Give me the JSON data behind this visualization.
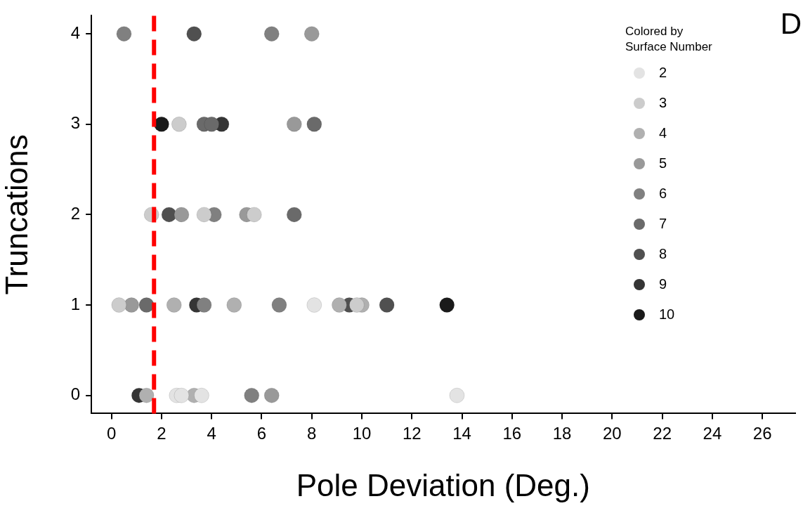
{
  "chart_data": {
    "type": "scatter",
    "xlabel": "Pole Deviation (Deg.)",
    "ylabel": "Truncations",
    "legend_title": "Colored by Surface Number",
    "legend": "top right",
    "grid": false,
    "marker": "circle",
    "xlim": [
      -0.8,
      27.3
    ],
    "xticks": [
      0,
      2,
      4,
      6,
      8,
      10,
      12,
      14,
      16,
      18,
      20,
      22,
      24,
      26
    ],
    "ylim": [
      -0.2,
      4.2
    ],
    "yticks": [
      0,
      1,
      2,
      3,
      4
    ],
    "annotations": [
      "D"
    ],
    "ref_lines": [
      {
        "axis": "x",
        "value": 1.7,
        "color": "#ff0000",
        "line_style": "dashed"
      }
    ],
    "series": [
      {
        "name": "2",
        "color": "#e3e3e3",
        "x": [
          8.1,
          2.6,
          2.8,
          3.6,
          13.8
        ],
        "values": [
          1,
          0,
          0,
          0,
          0
        ]
      },
      {
        "name": "3",
        "color": "#cccccc",
        "x": [
          2.7,
          1.6,
          3.7,
          5.7,
          0.3,
          9.8
        ],
        "values": [
          3,
          2,
          2,
          2,
          1,
          1
        ]
      },
      {
        "name": "4",
        "color": "#b0b0b0",
        "x": [
          2.5,
          4.9,
          9.1,
          10.0,
          1.4,
          3.3
        ],
        "values": [
          1,
          1,
          1,
          1,
          0,
          0
        ]
      },
      {
        "name": "5",
        "color": "#999999",
        "x": [
          8.0,
          7.3,
          2.8,
          5.4,
          0.8,
          6.4
        ],
        "values": [
          4,
          3,
          2,
          2,
          1,
          0
        ]
      },
      {
        "name": "6",
        "color": "#808080",
        "x": [
          0.5,
          6.4,
          4.1,
          3.7,
          6.7,
          5.6
        ],
        "values": [
          4,
          4,
          2,
          1,
          1,
          0
        ]
      },
      {
        "name": "7",
        "color": "#6a6a6a",
        "x": [
          3.7,
          4.0,
          8.1,
          7.3,
          1.4
        ],
        "values": [
          3,
          3,
          3,
          2,
          1
        ]
      },
      {
        "name": "8",
        "color": "#505050",
        "x": [
          3.3,
          2.3,
          9.5,
          11.0
        ],
        "values": [
          4,
          2,
          1,
          1
        ]
      },
      {
        "name": "9",
        "color": "#353535",
        "x": [
          4.4,
          3.4,
          1.1
        ],
        "values": [
          3,
          1,
          0
        ]
      },
      {
        "name": "10",
        "color": "#1a1a1a",
        "x": [
          2.0,
          13.4
        ],
        "values": [
          3,
          1
        ]
      }
    ]
  }
}
